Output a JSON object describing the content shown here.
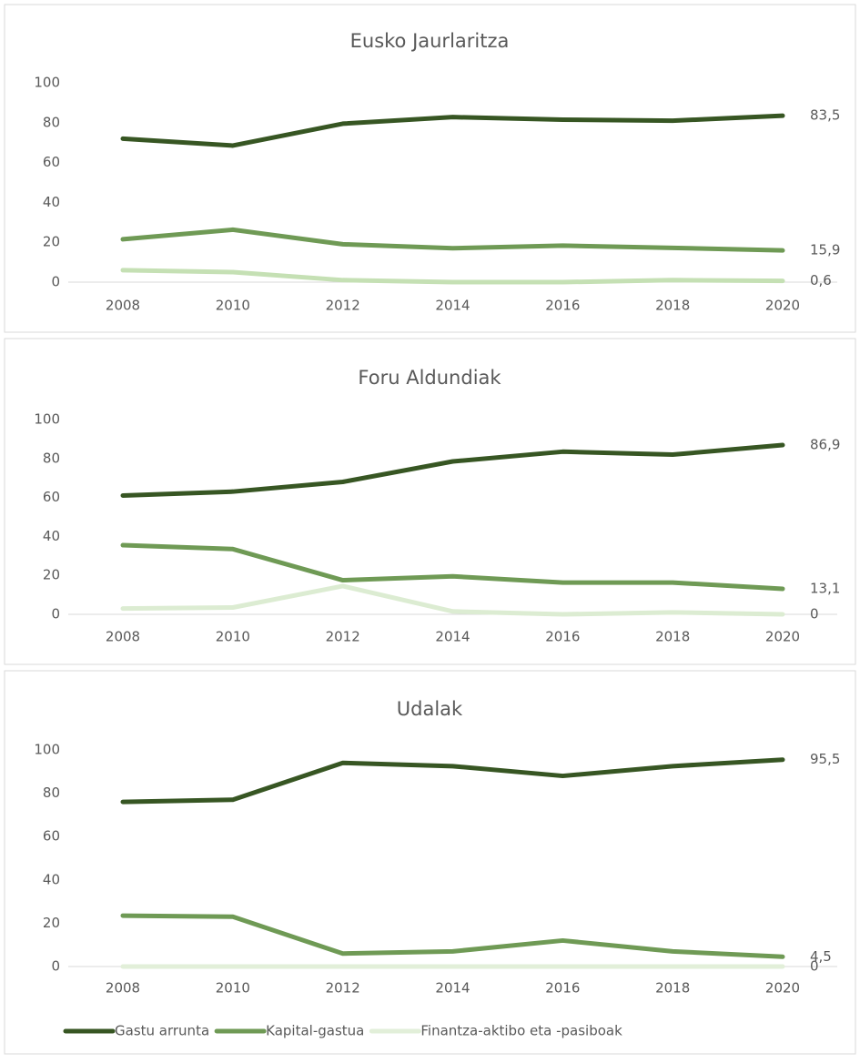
{
  "chart_data": [
    {
      "type": "line",
      "title": "Eusko Jaurlaritza",
      "categories": [
        "2008",
        "2010",
        "2012",
        "2014",
        "2016",
        "2018",
        "2020"
      ],
      "ylim": [
        0,
        100
      ],
      "yticks": [
        0,
        20,
        40,
        60,
        80,
        100
      ],
      "grid": false,
      "series": [
        {
          "color": "#375623",
          "values": [
            72,
            68.5,
            79.5,
            82.8,
            81.5,
            81,
            83.5
          ],
          "value_labels": [
            null,
            null,
            null,
            null,
            null,
            null,
            "83,5"
          ]
        },
        {
          "color": "#6f9a55",
          "values": [
            21.5,
            26.3,
            19,
            17,
            18.3,
            17.2,
            15.9
          ],
          "value_labels": [
            null,
            null,
            null,
            null,
            null,
            null,
            "15,9"
          ]
        },
        {
          "color": "#c5e0b4",
          "values": [
            6,
            5,
            1,
            0,
            0,
            1,
            0.6
          ],
          "value_labels": [
            null,
            null,
            null,
            null,
            null,
            null,
            "0,6"
          ]
        }
      ]
    },
    {
      "type": "line",
      "title": "Foru Aldundiak",
      "categories": [
        "2008",
        "2010",
        "2012",
        "2014",
        "2016",
        "2018",
        "2020"
      ],
      "ylim": [
        0,
        100
      ],
      "yticks": [
        0,
        20,
        40,
        60,
        80,
        100
      ],
      "grid": false,
      "series": [
        {
          "color": "#375623",
          "values": [
            61,
            63,
            68,
            78.5,
            83.5,
            82,
            86.9
          ],
          "value_labels": [
            null,
            null,
            null,
            null,
            null,
            null,
            "86,9"
          ]
        },
        {
          "color": "#6f9a55",
          "values": [
            35.5,
            33.5,
            17.5,
            19.5,
            16.3,
            16.3,
            13.1
          ],
          "value_labels": [
            null,
            null,
            null,
            null,
            null,
            null,
            "13,1"
          ]
        },
        {
          "color": "#dcecd2",
          "values": [
            3,
            3.5,
            14.5,
            1.5,
            0,
            1,
            0
          ],
          "value_labels": [
            null,
            null,
            null,
            null,
            null,
            null,
            "0"
          ]
        }
      ]
    },
    {
      "type": "line",
      "title": "Udalak",
      "categories": [
        "2008",
        "2010",
        "2012",
        "2014",
        "2016",
        "2018",
        "2020"
      ],
      "ylim": [
        0,
        100
      ],
      "yticks": [
        0,
        20,
        40,
        60,
        80,
        100
      ],
      "grid": false,
      "series": [
        {
          "color": "#375623",
          "values": [
            76,
            77,
            94,
            92.5,
            88,
            92.5,
            95.5
          ],
          "value_labels": [
            null,
            null,
            null,
            null,
            null,
            null,
            "95,5"
          ]
        },
        {
          "color": "#6f9a55",
          "values": [
            23.5,
            23,
            6,
            7,
            12,
            7,
            4.5
          ],
          "value_labels": [
            null,
            null,
            null,
            null,
            null,
            null,
            "4,5"
          ]
        },
        {
          "color": "#e2efd9",
          "values": [
            0,
            0,
            0,
            0,
            0,
            0,
            0
          ],
          "value_labels": [
            null,
            null,
            null,
            null,
            null,
            null,
            "0"
          ]
        }
      ]
    }
  ],
  "legend": [
    {
      "name": "Gastu arrunta",
      "color": "#375623"
    },
    {
      "name": "Kapital-gastua",
      "color": "#6f9a55"
    },
    {
      "name": "Finantza-aktibo eta -pasiboak",
      "color": "#e2efd9"
    }
  ]
}
